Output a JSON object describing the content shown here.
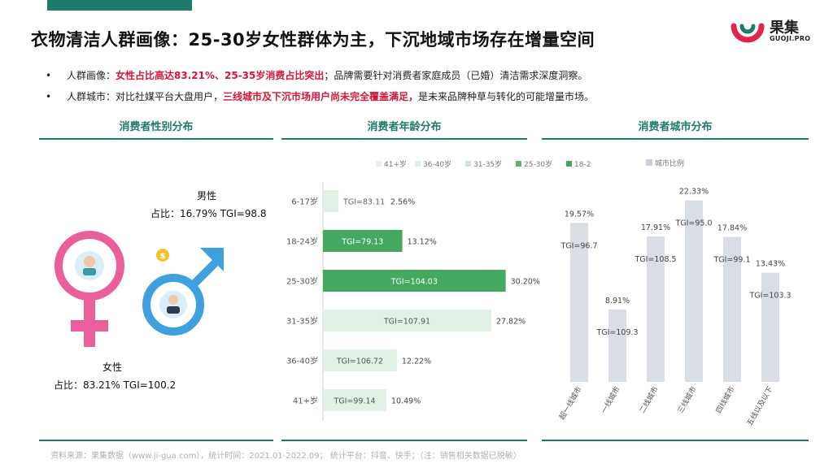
{
  "header": {
    "title": "衣物清洁人群画像：25-30岁女性群体为主，下沉地域市场存在增量空间",
    "logo_cn": "果集",
    "logo_en": "GUOJI.PRO"
  },
  "bullets": [
    {
      "label": "人群画像：",
      "highlight": "女性占比高达83.21%、25-35岁消费占比突出",
      "rest": "；品牌需要针对消费者家庭成员（已婚）清洁需求深度洞察。"
    },
    {
      "label": "人群城市：对比社媒平台大盘用户，",
      "highlight": "三线城市及下沉市场用户尚未完全覆盖满足，",
      "rest": "是未来品牌种草与转化的可能增量市场。"
    }
  ],
  "sections": {
    "gender": "消费者性别分布",
    "age": "消费者年龄分布",
    "city": "消费者城市分布"
  },
  "gender": {
    "male_title": "男性",
    "male_stat": "占比：16.79%  TGI=98.8",
    "female_title": "女性",
    "female_stat": "占比：83.21%  TGI=100.2"
  },
  "colors": {
    "accent": "#1f7a6c",
    "highlight": "#d6153a",
    "female": "#e95f9c",
    "male": "#3ea0de",
    "bar_light": "#e2f1e6",
    "bar_dark": "#45a85f",
    "city_bar": "#d9dee6"
  },
  "chart_data": [
    {
      "type": "bar",
      "orientation": "horizontal",
      "legend": [
        "41+岁",
        "36-40岁",
        "31-35岁",
        "25-30岁",
        "18-2"
      ],
      "legend_colors": [
        "#e8f3ea",
        "#dcefe0",
        "#cfe6d5",
        "#5fb46f",
        "#45a85f"
      ],
      "categories": [
        "6-17岁",
        "18-24岁",
        "25-30岁",
        "31-35岁",
        "36-40岁",
        "41+岁"
      ],
      "values": [
        2.56,
        13.12,
        30.2,
        27.82,
        12.22,
        10.49
      ],
      "value_labels": [
        "2.56%",
        "13.12%",
        "30.20%",
        "27.82%",
        "12.22%",
        "10.49%"
      ],
      "tgi_labels": [
        "TGI=83.11",
        "TGI=79.13",
        "TGI=104.03",
        "TGI=107.91",
        "TGI=106.72",
        "TGI=99.14"
      ],
      "bar_colors": [
        "#e2f1e6",
        "#45a85f",
        "#45a85f",
        "#e2f1e6",
        "#e2f1e6",
        "#e2f1e6"
      ],
      "tgi_colors": [
        "#666666",
        "#ffffff",
        "#ffffff",
        "#555555",
        "#555555",
        "#555555"
      ],
      "xlim": [
        0,
        32
      ]
    },
    {
      "type": "bar",
      "legend": [
        "城市比例"
      ],
      "categories": [
        "超一线城市",
        "一线城市",
        "二线城市",
        "三线城市",
        "四线城市",
        "五线以及以下"
      ],
      "values": [
        19.57,
        8.91,
        17.91,
        22.33,
        17.84,
        13.43
      ],
      "value_labels": [
        "19.57%",
        "8.91%",
        "17.91%",
        "22.33%",
        "17.84%",
        "13.43%"
      ],
      "tgi_labels": [
        "TGI=96.7",
        "TGI=109.3",
        "TGI=108.5",
        "TGI=95.0",
        "TGI=99.1",
        "TGI=103.3"
      ],
      "ylim": [
        0,
        24
      ]
    }
  ],
  "footer": {
    "source": "资料来源：果集数据（www.ji-gua.com），统计时间：2021.01-2022.09；    统计平台：抖音、快手；（注：销售相关数据已脱敏）"
  }
}
